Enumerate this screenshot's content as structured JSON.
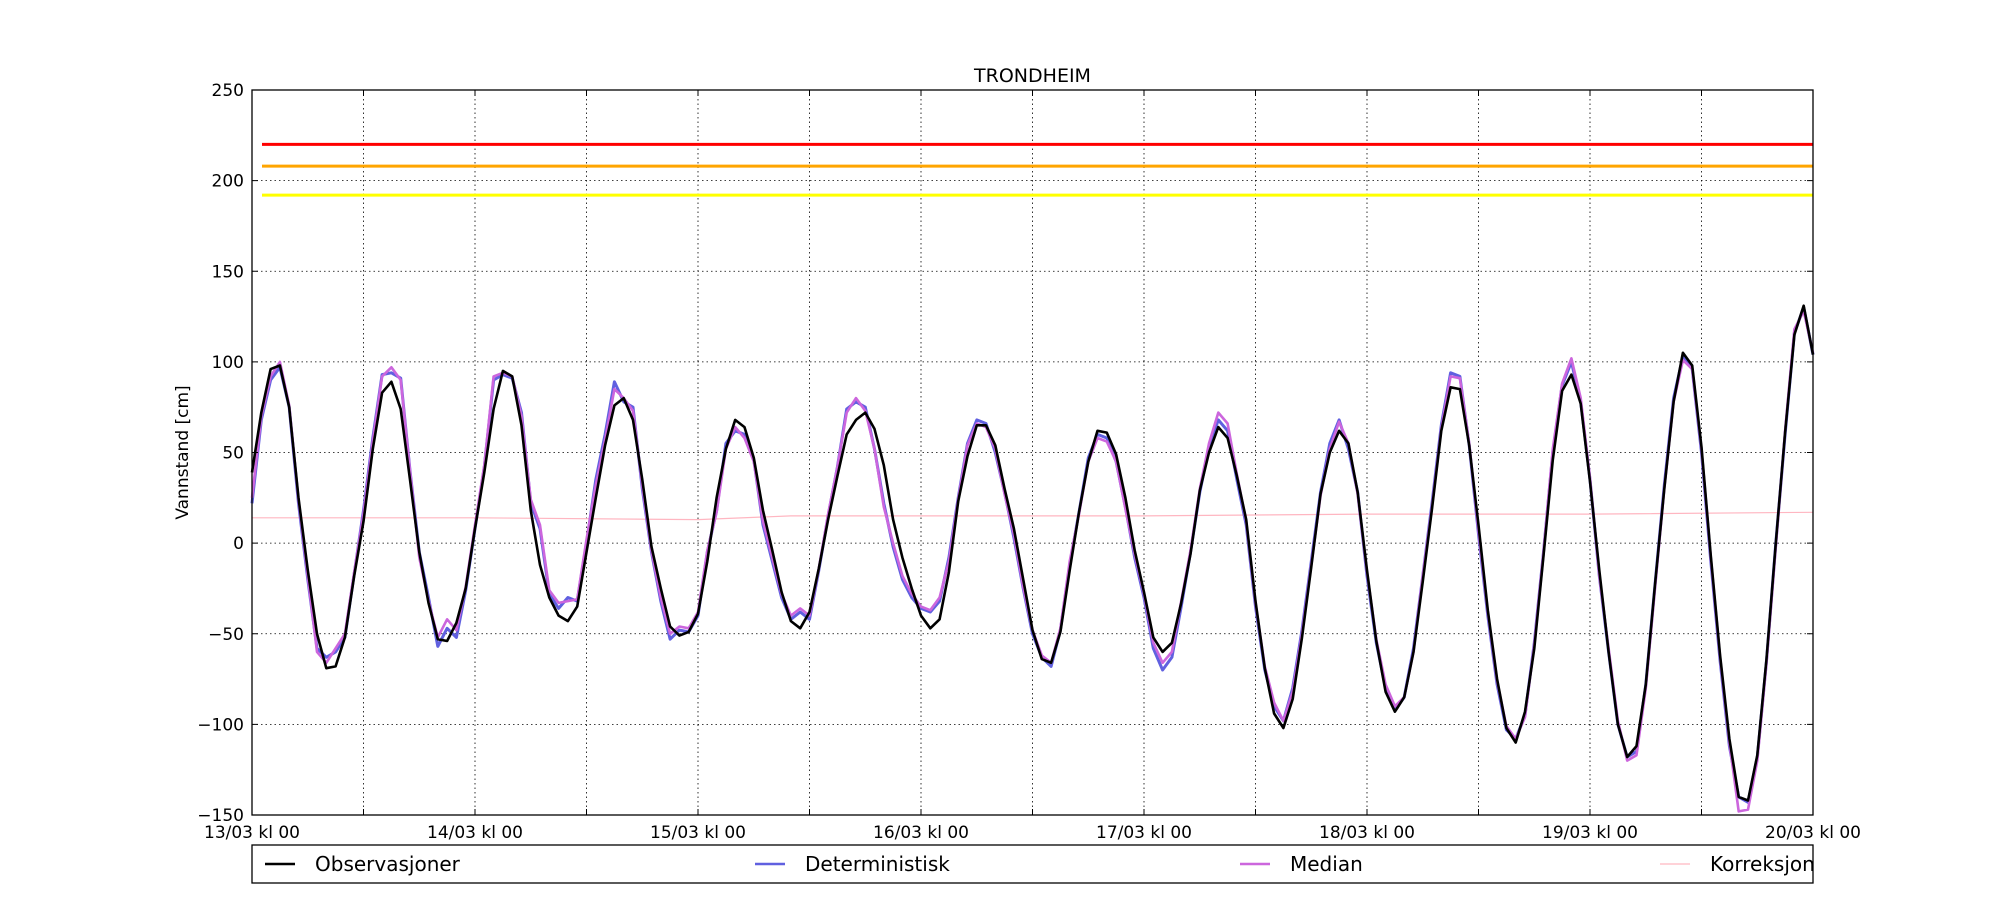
{
  "chart_data": {
    "type": "line",
    "title": "TRONDHEIM",
    "xlabel": "",
    "ylabel": "Vannstand [cm]",
    "ylim": [
      -150,
      250
    ],
    "yticks": [
      -150,
      -100,
      -50,
      0,
      50,
      100,
      150,
      200,
      250
    ],
    "ytick_labels": [
      "−150",
      "−100",
      "−50",
      "0",
      "50",
      "100",
      "150",
      "200",
      "250"
    ],
    "xlim_hours": [
      0,
      168
    ],
    "xticks": [
      "13/03 kl 00",
      "14/03 kl 00",
      "15/03 kl 00",
      "16/03 kl 00",
      "17/03 kl 00",
      "18/03 kl 00",
      "19/03 kl 00",
      "20/03 kl 00"
    ],
    "grid": true,
    "legend_position": "below",
    "thresholds": [
      {
        "value": 220,
        "color": "#ff0000"
      },
      {
        "value": 208,
        "color": "#ffa500"
      },
      {
        "value": 192,
        "color": "#ffff00"
      }
    ],
    "series": [
      {
        "name": "Observasjoner",
        "color": "#000000",
        "x_hours": [
          0,
          1,
          2,
          3,
          4,
          5,
          6,
          7,
          8,
          9,
          10,
          11,
          12,
          13,
          14,
          15,
          16,
          17,
          18,
          19,
          20,
          21,
          22,
          23,
          24,
          25,
          26,
          27,
          28,
          29,
          30,
          31,
          32,
          33,
          34,
          35,
          36,
          37,
          38,
          39,
          40,
          41,
          42,
          43,
          44,
          45,
          46,
          47,
          48,
          49,
          50,
          51,
          52,
          53,
          54,
          55,
          56,
          57,
          58,
          59,
          60,
          61,
          62,
          63,
          64,
          65,
          66,
          67,
          68,
          69,
          70,
          71,
          72,
          73,
          74,
          75,
          76,
          77,
          78,
          79,
          80,
          81,
          82,
          83,
          84,
          85,
          86,
          87,
          88,
          89,
          90,
          91,
          92,
          93,
          94,
          95,
          96,
          97,
          98,
          99,
          100,
          101,
          102,
          103,
          104,
          105,
          106,
          107,
          108,
          109,
          110,
          111,
          112,
          113,
          114,
          115,
          116,
          117,
          118,
          119,
          120,
          121,
          122,
          123,
          124,
          125,
          126,
          127,
          128,
          129,
          130,
          131,
          132,
          133,
          134,
          135,
          136,
          137,
          138,
          139,
          140,
          141,
          142,
          143,
          144,
          145,
          146,
          147,
          148,
          149,
          150,
          151,
          152,
          153,
          154,
          155,
          156,
          157,
          158,
          159,
          160,
          161,
          162,
          163,
          164,
          165,
          166,
          167,
          168
        ],
        "values": [
          39,
          72,
          96,
          98,
          75,
          25,
          -15,
          -50,
          -69,
          -68,
          -52,
          -18,
          12,
          52,
          83,
          89,
          74,
          35,
          -5,
          -33,
          -53,
          -54,
          -44,
          -25,
          8,
          39,
          74,
          95,
          92,
          65,
          18,
          -12,
          -30,
          -40,
          -43,
          -35,
          -5,
          25,
          54,
          76,
          80,
          68,
          35,
          -2,
          -25,
          -46,
          -51,
          -49,
          -39,
          -10,
          25,
          52,
          68,
          64,
          47,
          18,
          -4,
          -27,
          -43,
          -47,
          -38,
          -14,
          13,
          37,
          60,
          68,
          72,
          63,
          43,
          13,
          -8,
          -25,
          -40,
          -47,
          -42,
          -16,
          23,
          48,
          65,
          65,
          54,
          30,
          8,
          -20,
          -48,
          -64,
          -66,
          -49,
          -15,
          17,
          45,
          62,
          61,
          49,
          25,
          -4,
          -27,
          -52,
          -60,
          -55,
          -33,
          -6,
          29,
          50,
          64,
          58,
          37,
          13,
          -32,
          -69,
          -94,
          -102,
          -86,
          -52,
          -13,
          27,
          50,
          62,
          55,
          28,
          -15,
          -54,
          -82,
          -93,
          -85,
          -60,
          -21,
          19,
          62,
          86,
          85,
          54,
          10,
          -37,
          -75,
          -102,
          -110,
          -93,
          -58,
          -7,
          46,
          84,
          93,
          77,
          34,
          -15,
          -60,
          -100,
          -118,
          -112,
          -78,
          -23,
          30,
          78,
          105,
          98,
          53,
          -7,
          -62,
          -108,
          -140,
          -142,
          -117,
          -64,
          0,
          61,
          115,
          131,
          104
        ]
      },
      {
        "name": "Deterministisk",
        "color": "#6060e0",
        "x_hours": [
          0,
          1,
          2,
          3,
          4,
          5,
          6,
          7,
          8,
          9,
          10,
          11,
          12,
          13,
          14,
          15,
          16,
          17,
          18,
          19,
          20,
          21,
          22,
          23,
          24,
          25,
          26,
          27,
          28,
          29,
          30,
          31,
          32,
          33,
          34,
          35,
          36,
          37,
          38,
          39,
          40,
          41,
          42,
          43,
          44,
          45,
          46,
          47,
          48,
          49,
          50,
          51,
          52,
          53,
          54,
          55,
          56,
          57,
          58,
          59,
          60,
          61,
          62,
          63,
          64,
          65,
          66,
          67,
          68,
          69,
          70,
          71,
          72,
          73,
          74,
          75,
          76,
          77,
          78,
          79,
          80,
          81,
          82,
          83,
          84,
          85,
          86,
          87,
          88,
          89,
          90,
          91,
          92,
          93,
          94,
          95,
          96,
          97,
          98,
          99,
          100,
          101,
          102,
          103,
          104,
          105,
          106,
          107,
          108,
          109,
          110,
          111,
          112,
          113,
          114,
          115,
          116,
          117,
          118,
          119,
          120,
          121,
          122,
          123,
          124,
          125,
          126,
          127,
          128,
          129,
          130,
          131,
          132,
          133,
          134,
          135,
          136,
          137,
          138,
          139,
          140,
          141,
          142,
          143,
          144,
          145,
          146,
          147,
          148,
          149,
          150,
          151,
          152,
          153,
          154,
          155,
          156,
          157,
          158,
          159,
          160,
          161,
          162,
          163,
          164,
          165,
          166,
          167,
          168
        ],
        "values": [
          22,
          68,
          90,
          97,
          75,
          22,
          -20,
          -58,
          -63,
          -60,
          -52,
          -17,
          18,
          58,
          93,
          94,
          91,
          40,
          -5,
          -30,
          -57,
          -47,
          -52,
          -26,
          8,
          42,
          90,
          93,
          91,
          72,
          22,
          8,
          -28,
          -36,
          -30,
          -32,
          0,
          35,
          60,
          89,
          78,
          75,
          30,
          -5,
          -32,
          -53,
          -48,
          -49,
          -40,
          -5,
          18,
          55,
          62,
          60,
          46,
          10,
          -10,
          -30,
          -42,
          -38,
          -42,
          -15,
          15,
          42,
          74,
          78,
          75,
          52,
          22,
          -2,
          -20,
          -30,
          -36,
          -38,
          -32,
          -8,
          25,
          55,
          68,
          66,
          50,
          28,
          3,
          -25,
          -50,
          -63,
          -68,
          -48,
          -12,
          17,
          47,
          60,
          58,
          45,
          20,
          -8,
          -30,
          -58,
          -70,
          -63,
          -35,
          -5,
          28,
          53,
          68,
          62,
          35,
          10,
          -35,
          -70,
          -90,
          -98,
          -80,
          -48,
          -10,
          28,
          55,
          68,
          52,
          28,
          -18,
          -55,
          -80,
          -92,
          -85,
          -58,
          -18,
          22,
          65,
          94,
          92,
          54,
          5,
          -40,
          -78,
          -103,
          -108,
          -95,
          -55,
          -5,
          50,
          87,
          100,
          78,
          35,
          -18,
          -60,
          -100,
          -118,
          -115,
          -78,
          -23,
          32,
          80,
          103,
          96,
          50,
          -10,
          -65,
          -112,
          -140,
          -143,
          -118,
          -65,
          0,
          60,
          116,
          130,
          104
        ]
      },
      {
        "name": "Median",
        "color": "#cc66dd",
        "x_hours": [
          0,
          1,
          2,
          3,
          4,
          5,
          6,
          7,
          8,
          9,
          10,
          11,
          12,
          13,
          14,
          15,
          16,
          17,
          18,
          19,
          20,
          21,
          22,
          23,
          24,
          25,
          26,
          27,
          28,
          29,
          30,
          31,
          32,
          33,
          34,
          35,
          36,
          37,
          38,
          39,
          40,
          41,
          42,
          43,
          44,
          45,
          46,
          47,
          48,
          49,
          50,
          51,
          52,
          53,
          54,
          55,
          56,
          57,
          58,
          59,
          60,
          61,
          62,
          63,
          64,
          65,
          66,
          67,
          68,
          69,
          70,
          71,
          72,
          73,
          74,
          75,
          76,
          77,
          78,
          79,
          80,
          81,
          82,
          83,
          84,
          85,
          86,
          87,
          88,
          89,
          90,
          91,
          92,
          93,
          94,
          95,
          96,
          97,
          98,
          99,
          100,
          101,
          102,
          103,
          104,
          105,
          106,
          107,
          108,
          109,
          110,
          111,
          112,
          113,
          114,
          115,
          116,
          117,
          118,
          119,
          120,
          121,
          122,
          123,
          124,
          125,
          126,
          127,
          128,
          129,
          130,
          131,
          132,
          133,
          134,
          135,
          136,
          137,
          138,
          139,
          140,
          141,
          142,
          143,
          144,
          145,
          146,
          147,
          148,
          149,
          150,
          151,
          152,
          153,
          154,
          155,
          156,
          157,
          158,
          159,
          160,
          161,
          162,
          163,
          164,
          165,
          166,
          167,
          168
        ],
        "values": [
          25,
          70,
          92,
          100,
          76,
          24,
          -18,
          -60,
          -66,
          -58,
          -50,
          -16,
          16,
          56,
          92,
          97,
          90,
          40,
          -8,
          -32,
          -52,
          -42,
          -48,
          -24,
          10,
          43,
          92,
          94,
          92,
          70,
          24,
          10,
          -26,
          -33,
          -32,
          -31,
          2,
          32,
          57,
          85,
          80,
          73,
          32,
          -4,
          -30,
          -50,
          -46,
          -47,
          -38,
          -4,
          17,
          52,
          64,
          58,
          45,
          12,
          -8,
          -28,
          -40,
          -36,
          -40,
          -14,
          16,
          42,
          72,
          80,
          73,
          52,
          20,
          0,
          -18,
          -28,
          -35,
          -37,
          -30,
          -10,
          24,
          54,
          66,
          64,
          52,
          27,
          5,
          -24,
          -48,
          -62,
          -66,
          -47,
          -10,
          16,
          45,
          58,
          56,
          45,
          19,
          -6,
          -28,
          -55,
          -66,
          -60,
          -32,
          -4,
          30,
          55,
          72,
          66,
          38,
          12,
          -33,
          -68,
          -88,
          -98,
          -82,
          -50,
          -12,
          26,
          52,
          67,
          55,
          27,
          -16,
          -53,
          -78,
          -90,
          -85,
          -60,
          -18,
          20,
          63,
          92,
          91,
          55,
          7,
          -38,
          -76,
          -101,
          -108,
          -96,
          -56,
          -5,
          52,
          88,
          102,
          80,
          36,
          -18,
          -58,
          -98,
          -120,
          -117,
          -80,
          -25,
          30,
          78,
          101,
          96,
          52,
          -8,
          -63,
          -110,
          -148,
          -147,
          -120,
          -66,
          -2,
          62,
          118,
          128,
          105
        ]
      },
      {
        "name": "Korreksjon",
        "color": "#ffb6c1",
        "x_hours": [
          0,
          24,
          48,
          58,
          72,
          96,
          120,
          144,
          168
        ],
        "values": [
          14,
          14,
          13,
          15,
          15,
          15,
          16,
          16,
          17
        ]
      }
    ]
  }
}
